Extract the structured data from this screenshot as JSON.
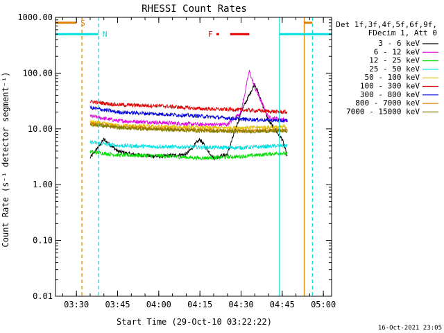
{
  "chart_data": {
    "type": "line",
    "title": "RHESSI Count Rates",
    "xlabel": "Start Time (29-Oct-10 03:22:22)",
    "ylabel": "Count Rate (s⁻¹ detector segment⁻¹)",
    "y_scale": "log",
    "ylim": [
      0.01,
      1000
    ],
    "xlim": [
      "03:22:22",
      "05:03:00"
    ],
    "x_ticks": [
      "03:30",
      "03:45",
      "04:00",
      "04:15",
      "04:30",
      "04:45",
      "05:00"
    ],
    "y_ticks": [
      "1000.00",
      "100.00",
      "10.00",
      "1.00",
      "0.10",
      "0.01"
    ],
    "grid": false,
    "legend_position": "top-right",
    "legend_header": [
      "Det 1f,3f,4f,5f,6f,9f,",
      "FDecim 1, Att 0"
    ],
    "series": [
      {
        "name": "3 - 6 keV",
        "color": "#000000",
        "x": [
          "03:35",
          "03:40",
          "03:45",
          "03:50",
          "04:00",
          "04:10",
          "04:15",
          "04:20",
          "04:25",
          "04:30",
          "04:35",
          "04:40",
          "04:45",
          "04:47"
        ],
        "y": [
          3.0,
          6.5,
          4.0,
          3.5,
          3.2,
          3.5,
          6.5,
          3.0,
          3.5,
          20,
          65,
          14,
          6.5,
          3.0
        ]
      },
      {
        "name": "6 - 12 keV",
        "color": "#e000e0",
        "x": [
          "03:35",
          "03:45",
          "04:00",
          "04:15",
          "04:25",
          "04:30",
          "04:33",
          "04:35",
          "04:40",
          "04:45",
          "04:47"
        ],
        "y": [
          17,
          14,
          13,
          12,
          12,
          20,
          110,
          55,
          16,
          15,
          14
        ]
      },
      {
        "name": "12 - 25 keV",
        "color": "#00e000",
        "x": [
          "03:35",
          "03:45",
          "04:00",
          "04:15",
          "04:30",
          "04:45",
          "04:47"
        ],
        "y": [
          3.9,
          3.4,
          3.3,
          3.0,
          3.2,
          3.7,
          3.5
        ]
      },
      {
        "name": "25 - 50 keV",
        "color": "#00e0e0",
        "x": [
          "03:35",
          "03:45",
          "04:00",
          "04:15",
          "04:30",
          "04:45",
          "04:47"
        ],
        "y": [
          5.8,
          5.0,
          4.8,
          4.7,
          4.6,
          5.0,
          5.0
        ]
      },
      {
        "name": "50 - 100 keV",
        "color": "#e0c000",
        "x": [
          "03:35",
          "03:45",
          "04:00",
          "04:15",
          "04:30",
          "04:45",
          "04:47"
        ],
        "y": [
          13.5,
          11.5,
          11.0,
          10.5,
          10.5,
          10.8,
          11.0
        ]
      },
      {
        "name": "100 - 300 keV",
        "color": "#e00000",
        "x": [
          "03:35",
          "03:45",
          "04:00",
          "04:15",
          "04:30",
          "04:45",
          "04:47"
        ],
        "y": [
          31,
          27,
          26,
          23,
          22,
          20,
          20
        ]
      },
      {
        "name": "300 - 800 keV",
        "color": "#0000e0",
        "x": [
          "03:35",
          "03:45",
          "04:00",
          "04:15",
          "04:30",
          "04:45",
          "04:47"
        ],
        "y": [
          24,
          20,
          18.5,
          17,
          15,
          14,
          14
        ]
      },
      {
        "name": "800 - 7000 keV",
        "color": "#e08000",
        "x": [
          "03:35",
          "03:45",
          "04:00",
          "04:15",
          "04:30",
          "04:45",
          "04:47"
        ],
        "y": [
          12.5,
          11.0,
          10.0,
          9.5,
          9.2,
          9.5,
          9.5
        ]
      },
      {
        "name": "7000 - 15000 keV",
        "color": "#808000",
        "x": [
          "03:35",
          "03:45",
          "04:00",
          "04:15",
          "04:30",
          "04:45",
          "04:47"
        ],
        "y": [
          12.0,
          10.5,
          9.8,
          9.3,
          9.0,
          9.2,
          9.2
        ]
      }
    ],
    "vertical_markers": [
      {
        "time": "03:32",
        "color": "#e08000",
        "style": "dashed"
      },
      {
        "time": "03:38",
        "color": "#00e0e0",
        "style": "dashed"
      },
      {
        "time": "04:44",
        "color": "#00e0e0",
        "style": "solid"
      },
      {
        "time": "04:53",
        "color": "#e08000",
        "style": "solid"
      },
      {
        "time": "04:56",
        "color": "#00e0e0",
        "style": "dashed"
      }
    ],
    "flag_bars": [
      {
        "label": "S",
        "color": "#e08000",
        "segments": [
          [
            "03:22:22",
            "03:30"
          ],
          [
            "04:53",
            "04:56"
          ]
        ],
        "level": 800
      },
      {
        "label": "N",
        "color": "#00e0e0",
        "segments": [
          [
            "03:22:22",
            "03:38"
          ],
          [
            "04:44",
            "05:03"
          ]
        ],
        "level": 500
      },
      {
        "label": "F",
        "color": "#e00000",
        "segments": [
          [
            "04:21",
            "04:22"
          ],
          [
            "04:26",
            "04:33"
          ]
        ],
        "level": 500
      }
    ],
    "footer_stamp": "16-Oct-2021 23:05"
  }
}
